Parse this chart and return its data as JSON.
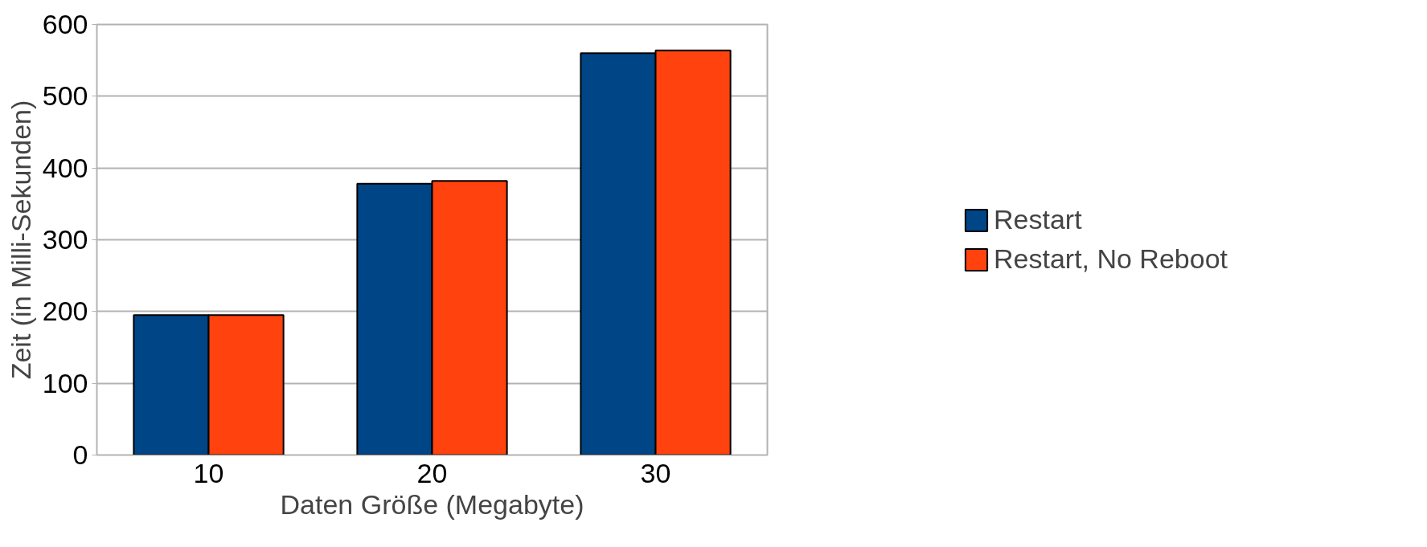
{
  "chart_data": {
    "type": "bar",
    "xlabel": "Daten Größe (Megabyte)",
    "ylabel": "Zeit (in Milli-Sekunden)",
    "categories": [
      "10",
      "20",
      "30"
    ],
    "series": [
      {
        "name": "Restart",
        "color": "#004586",
        "values": [
          195,
          378,
          560
        ]
      },
      {
        "name": "Restart, No Reboot",
        "color": "#ff420e",
        "values": [
          195,
          382,
          564
        ]
      }
    ],
    "ylim": [
      0,
      600
    ],
    "yticks": [
      0,
      100,
      200,
      300,
      400,
      500,
      600
    ],
    "grid": "y",
    "legend": "right"
  }
}
